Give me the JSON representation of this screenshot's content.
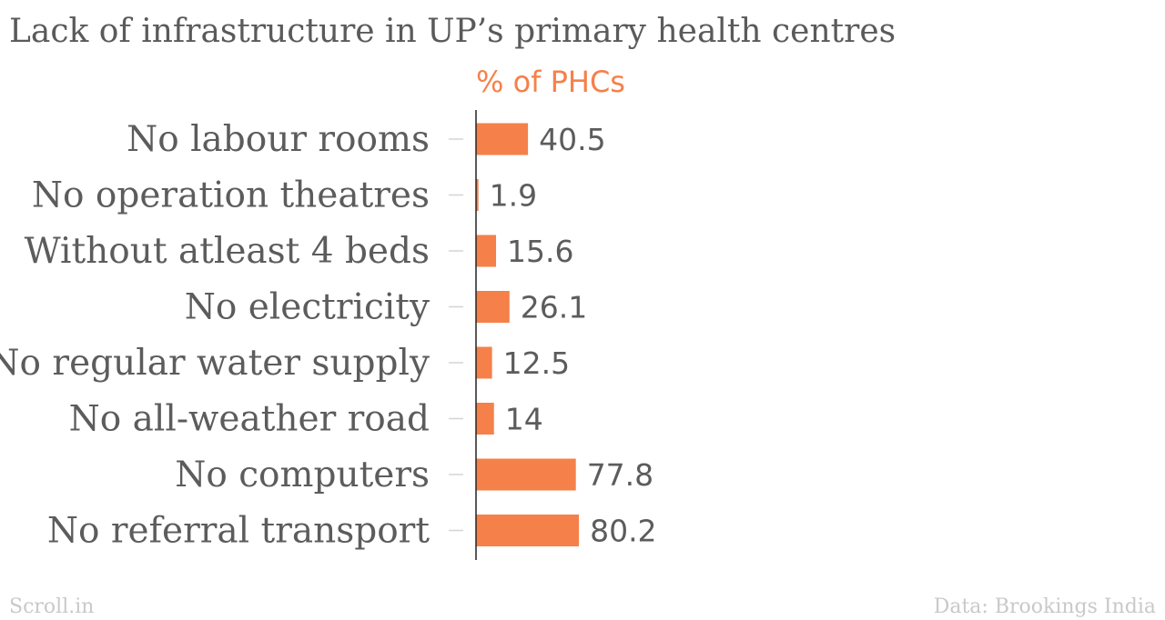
{
  "chart_data": {
    "type": "bar",
    "orientation": "horizontal",
    "title": "Lack of infrastructure in UP’s primary health centres",
    "units_label": "% of PHCs",
    "categories": [
      "No labour rooms",
      "No operation theatres",
      "Without atleast 4 beds",
      "No electricity",
      "No regular water supply",
      "No all-weather road",
      "No computers",
      "No referral transport"
    ],
    "values": [
      40.5,
      1.9,
      15.6,
      26.1,
      12.5,
      14,
      77.8,
      80.2
    ],
    "value_labels": [
      "40.5",
      "1.9",
      "15.6",
      "26.1",
      "12.5",
      "14",
      "77.8",
      "80.2"
    ],
    "xlim": [
      0,
      100
    ],
    "grid": false,
    "legend": "none",
    "bar_color": "#f6804a"
  },
  "footer": {
    "source_left": "Scroll.in",
    "source_right": "Data: Brookings India"
  }
}
